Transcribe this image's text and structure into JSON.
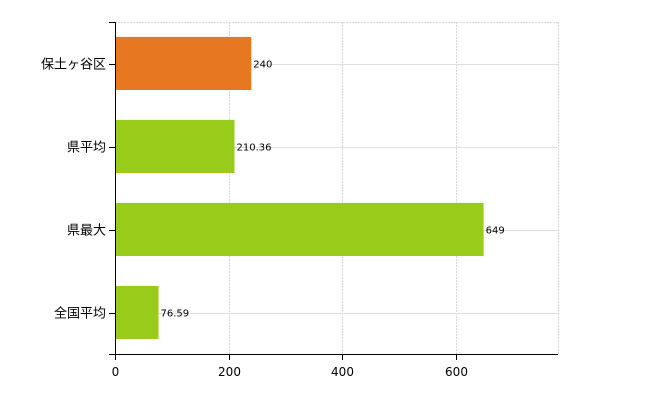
{
  "chart_data": {
    "type": "bar",
    "orientation": "horizontal",
    "categories": [
      "保土ヶ谷区",
      "県平均",
      "県最大",
      "全国平均"
    ],
    "values": [
      240,
      210.36,
      649,
      76.59
    ],
    "value_labels": [
      "240",
      "210.36",
      "649",
      "76.59"
    ],
    "colors": [
      "#e87722",
      "#99cc1a",
      "#99cc1a",
      "#99cc1a"
    ],
    "xlim": [
      0,
      780
    ],
    "xticks": [
      0,
      200,
      400,
      600
    ],
    "xtick_labels": [
      "0",
      "200",
      "400",
      "600"
    ],
    "grid": true,
    "legend": "none"
  }
}
